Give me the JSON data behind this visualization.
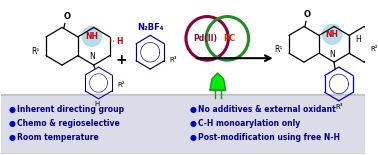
{
  "bg_color": "#ffffff",
  "bottom_bg": "#dcdce8",
  "bottom_border": "#aaaaaa",
  "bullet_color": "#0000cc",
  "bullet_text_color": "#00008B",
  "bullet_left": [
    "Inherent directing group",
    "Chemo & regioselective",
    "Room temperature"
  ],
  "bullet_right": [
    "No additives & external oxidant",
    "C-H monoarylation only",
    "Post-modification using free N-H"
  ],
  "black": "#000000",
  "dark_blue": "#00008B",
  "red_label": "#cc0000",
  "pd_color": "#8B0036",
  "pc_color": "#228B22",
  "pc_text_color": "#cc3300",
  "led_body": "#00ee00",
  "led_leg": "#228B22",
  "nh_circle": "#a8d8ea",
  "arrow_color": "#000000"
}
